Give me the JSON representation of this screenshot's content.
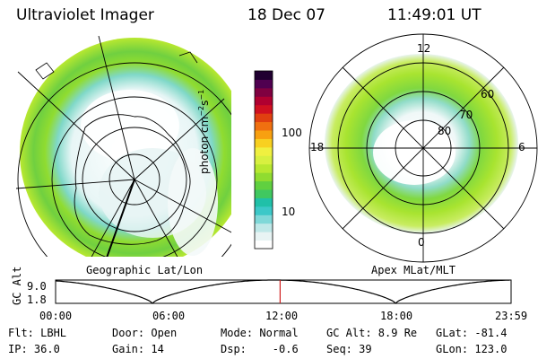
{
  "header": {
    "instrument": "Ultraviolet Imager",
    "date": "18 Dec 07",
    "time": "11:49:01 UT"
  },
  "left_panel": {
    "label": "Geographic Lat/Lon"
  },
  "right_panel": {
    "label": "Apex MLat/MLT",
    "mlt_labels": [
      "12",
      "18",
      "6",
      "0"
    ],
    "lat_labels": [
      "60",
      "70",
      "80"
    ]
  },
  "colorbar": {
    "label": "photon cm",
    "label_sup": "−2",
    "label_s": "s",
    "label_s_sup": "−1",
    "ticks": [
      "100",
      "10"
    ],
    "colors": [
      "#ffffff",
      "#e8f4f4",
      "#bfe8e8",
      "#7fd8d8",
      "#3cc8c8",
      "#20c0a8",
      "#40c860",
      "#60d040",
      "#90dc30",
      "#b8e830",
      "#d8f040",
      "#f0f040",
      "#f8d020",
      "#f8a010",
      "#f07010",
      "#e04010",
      "#d01020",
      "#b00030",
      "#800040",
      "#500050",
      "#200030"
    ]
  },
  "timeline": {
    "y_axis_label": "GC Alt",
    "y_max": "9.0",
    "y_min": "1.8",
    "x_ticks": [
      "00:00",
      "06:00",
      "12:00",
      "18:00",
      "23:59"
    ],
    "current_hour": 11.82,
    "orbit_period_hours": 12.8,
    "apogee_hour": 11.5
  },
  "footer": {
    "col1": [
      "Flt: LBHL",
      "IP: 36.0"
    ],
    "col2": [
      "Door: Open",
      "Gain: 14"
    ],
    "col3": [
      "Mode: Normal",
      "Dsp:    -0.6"
    ],
    "col4": [
      "GC Alt: 8.9 Re",
      "Seq: 39"
    ],
    "col5": [
      "GLat: -81.4",
      "GLon: 123.0"
    ]
  }
}
